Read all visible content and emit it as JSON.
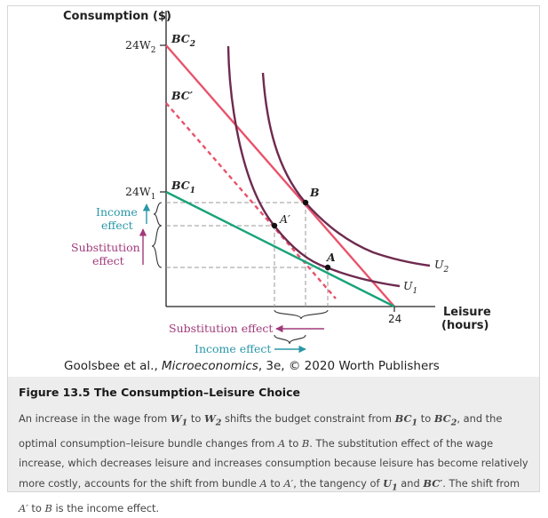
{
  "figure": {
    "y_axis_title": "Consumption ($)",
    "x_axis_title_line1": "Leisure",
    "x_axis_title_line2": "(hours)",
    "x_tick": "24",
    "y_tick_high": "24W",
    "y_tick_high_sub": "2",
    "y_tick_low": "24W",
    "y_tick_low_sub": "1",
    "bc2_label": "BC",
    "bc2_sub": "2",
    "bc_prime_label": "BC′",
    "bc1_label": "BC",
    "bc1_sub": "1",
    "u1_label": "U",
    "u1_sub": "1",
    "u2_label": "U",
    "u2_sub": "2",
    "point_a": "A",
    "point_a_prime": "A′",
    "point_b": "B",
    "income_effect_line1": "Income",
    "income_effect_line2": "effect",
    "substitution_effect_line1": "Substitution",
    "substitution_effect_line2": "effect",
    "substitution_effect_h": "Substitution effect",
    "income_effect_h": "Income effect",
    "colors": {
      "bc2": "#e8536b",
      "bc1": "#1aa37a",
      "utility": "#6e2a4f",
      "income_effect": "#2a97a8",
      "substitution_effect": "#a0397a",
      "guides": "#9a9a9a"
    }
  },
  "credit": {
    "authors": "Goolsbee et al., ",
    "book": "Microeconomics",
    "rest": ", 3e, © 2020 Worth Publishers"
  },
  "caption": {
    "title": "Figure 13.5 The Consumption–Leisure Choice",
    "t1": "An increase in the wage from ",
    "w1": "W",
    "w1_sub": "1",
    "t2": " to ",
    "w2": "W",
    "w2_sub": "2",
    "t3": " shifts the budget constraint from ",
    "bc1": "BC",
    "bc1_sub": "1",
    "t4": " to ",
    "bc2": "BC",
    "bc2_sub": "2",
    "t5": ", and the optimal consumption–leisure bundle changes from ",
    "a": "A",
    "t6": " to ",
    "b": "B",
    "t7": ". The substitution effect of the wage increase, which decreases leisure and increases consumption because leisure has become relatively more costly, accounts for the shift from bundle ",
    "a2": "A",
    "t8": " to ",
    "a_prime": "A′",
    "t9": ", the tangency of ",
    "u1": "U",
    "u1_sub": "1",
    "t10": " and ",
    "bc_prime": "BC′",
    "t11": ". The shift from ",
    "a_prime2": "A′",
    "t12": " to ",
    "b2": "B",
    "t13": " is the income effect."
  }
}
